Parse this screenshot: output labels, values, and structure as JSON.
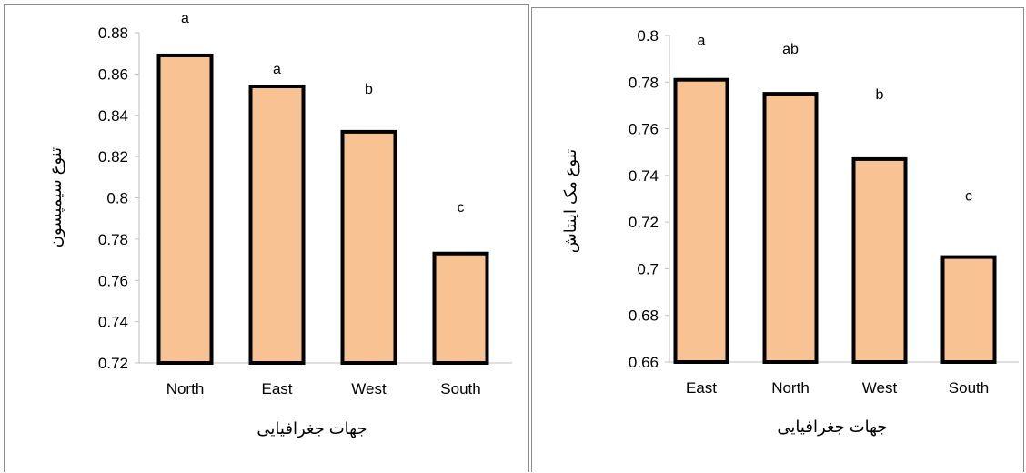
{
  "colors": {
    "bar_fill": "#f9c293",
    "bar_stroke": "#000000",
    "axis": "#bfbfbf"
  },
  "chart_data": [
    {
      "type": "bar",
      "title": "",
      "xlabel": "جهات جغرافیایی",
      "ylabel": "تنوع سیمپسون",
      "categories": [
        "North",
        "East",
        "West",
        "South"
      ],
      "values": [
        0.869,
        0.854,
        0.832,
        0.773
      ],
      "significance": [
        "a",
        "a",
        "b",
        "c"
      ],
      "ylim": [
        0.72,
        0.88
      ],
      "yticks": [
        "0.72",
        "0.74",
        "0.76",
        "0.78",
        "0.8",
        "0.82",
        "0.84",
        "0.86",
        "0.88"
      ],
      "grid": false
    },
    {
      "type": "bar",
      "title": "",
      "xlabel": "جهات جغرافیایی",
      "ylabel": "تنوع مک اینتاش",
      "categories": [
        "East",
        "North",
        "West",
        "South"
      ],
      "values": [
        0.781,
        0.775,
        0.747,
        0.705
      ],
      "significance": [
        "a",
        "ab",
        "b",
        "c"
      ],
      "ylim": [
        0.66,
        0.8
      ],
      "yticks": [
        "0.66",
        "0.68",
        "0.7",
        "0.72",
        "0.74",
        "0.76",
        "0.78",
        "0.8"
      ],
      "grid": false
    }
  ]
}
